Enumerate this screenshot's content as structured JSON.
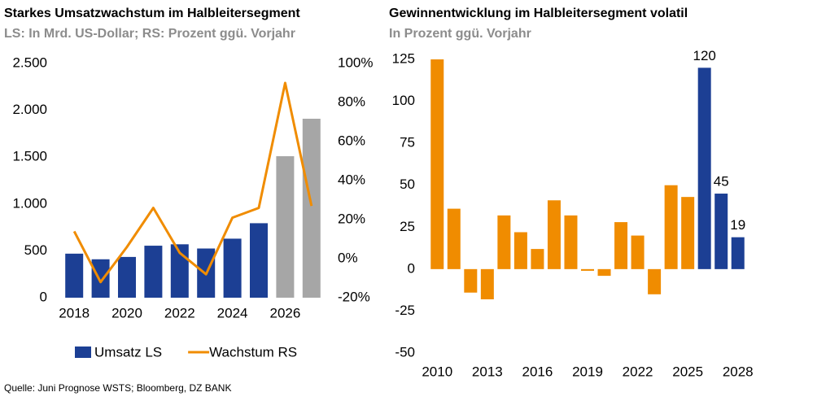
{
  "chart_data": [
    {
      "type": "bar_line",
      "title": "Starkes Umsatzwachstum im Halbleitersegment",
      "subtitle": "LS: In Mrd. US-Dollar; RS: Prozent ggü. Vorjahr",
      "categories": [
        "2018",
        null,
        "2020",
        null,
        "2022",
        null,
        "2024",
        null,
        "2026",
        null
      ],
      "series": [
        {
          "name": "Umsatz LS",
          "type": "bar",
          "color": "#1c3f94",
          "colors": [
            "#1c3f94",
            "#1c3f94",
            "#1c3f94",
            "#1c3f94",
            "#1c3f94",
            "#1c3f94",
            "#1c3f94",
            "#1c3f94",
            "#a6a6a6",
            "#a6a6a6"
          ],
          "values": [
            470,
            410,
            435,
            555,
            570,
            525,
            630,
            795,
            1510,
            1910
          ]
        },
        {
          "name": "Wachstum RS",
          "type": "line",
          "axis": "y2",
          "color": "#f08c00",
          "values": [
            14,
            -12,
            6,
            26,
            3,
            -8,
            21,
            26,
            90,
            27
          ]
        }
      ],
      "ylim": [
        0,
        2500
      ],
      "yticks": [
        0,
        500,
        {
          "value": 1000,
          "label": "1.000"
        },
        {
          "value": 1500,
          "label": "1.500"
        },
        {
          "value": 2000,
          "label": "2.000"
        },
        {
          "value": 2500,
          "label": "2.500"
        }
      ],
      "y2lim": [
        -20,
        100
      ],
      "y2ticks": [
        {
          "value": -20,
          "label": "-20%"
        },
        {
          "value": 0,
          "label": "0%"
        },
        {
          "value": 20,
          "label": "20%"
        },
        {
          "value": 40,
          "label": "40%"
        },
        {
          "value": 60,
          "label": "60%"
        },
        {
          "value": 80,
          "label": "80%"
        },
        {
          "value": 100,
          "label": "100%"
        }
      ],
      "legend": "bottom"
    },
    {
      "type": "bar",
      "title": "Gewinnentwicklung im Halbleitersegment volatil",
      "subtitle": "In Prozent ggü. Vorjahr",
      "categories": [
        "2010",
        null,
        null,
        "2013",
        null,
        null,
        "2016",
        null,
        null,
        "2019",
        null,
        null,
        "2022",
        null,
        null,
        "2025",
        null,
        null,
        "2028"
      ],
      "values": [
        125,
        36,
        -14,
        -18,
        32,
        22,
        12,
        41,
        32,
        -1,
        -4,
        28,
        20,
        -15,
        50,
        43,
        120,
        45,
        19
      ],
      "value_labels": [
        null,
        null,
        null,
        null,
        null,
        null,
        null,
        null,
        null,
        null,
        null,
        null,
        null,
        null,
        null,
        null,
        "120",
        "45",
        "19"
      ],
      "colors": [
        "#f08c00",
        "#f08c00",
        "#f08c00",
        "#f08c00",
        "#f08c00",
        "#f08c00",
        "#f08c00",
        "#f08c00",
        "#f08c00",
        "#f08c00",
        "#f08c00",
        "#f08c00",
        "#f08c00",
        "#f08c00",
        "#f08c00",
        "#f08c00",
        "#1c3f94",
        "#1c3f94",
        "#1c3f94"
      ],
      "ylim": [
        -50,
        125
      ],
      "yticks": [
        -50,
        -25,
        0,
        25,
        50,
        75,
        100,
        125
      ]
    }
  ],
  "source": "Quelle: Juni Prognose WSTS; Bloomberg, DZ BANK"
}
